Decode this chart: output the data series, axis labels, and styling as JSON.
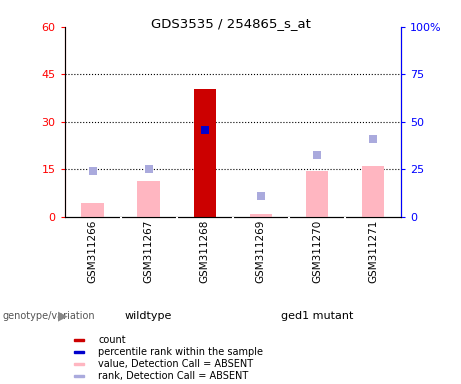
{
  "title": "GDS3535 / 254865_s_at",
  "samples": [
    "GSM311266",
    "GSM311267",
    "GSM311268",
    "GSM311269",
    "GSM311270",
    "GSM311271"
  ],
  "bar_values": [
    4.5,
    11.5,
    40.5,
    1.0,
    14.5,
    16.0
  ],
  "bar_colors": [
    "#FFB6C1",
    "#FFB6C1",
    "#CC0000",
    "#FFB6C1",
    "#FFB6C1",
    "#FFB6C1"
  ],
  "rank_squares": [
    14.5,
    15.2,
    27.5,
    6.5,
    19.5,
    24.5
  ],
  "rank_colors": [
    "#AAAADD",
    "#AAAADD",
    "#0000CC",
    "#AAAADD",
    "#AAAADD",
    "#AAAADD"
  ],
  "ylim_left": [
    0,
    60
  ],
  "ylim_right": [
    0,
    100
  ],
  "yticks_left": [
    0,
    15,
    30,
    45,
    60
  ],
  "yticks_right": [
    0,
    25,
    50,
    75,
    100
  ],
  "ytick_labels_left": [
    "0",
    "15",
    "30",
    "45",
    "60"
  ],
  "ytick_labels_right": [
    "0",
    "25",
    "50",
    "75",
    "100%"
  ],
  "hlines": [
    15,
    30,
    45
  ],
  "legend_items": [
    {
      "label": "count",
      "color": "#CC0000"
    },
    {
      "label": "percentile rank within the sample",
      "color": "#0000CC"
    },
    {
      "label": "value, Detection Call = ABSENT",
      "color": "#FFB6C1"
    },
    {
      "label": "rank, Detection Call = ABSENT",
      "color": "#AAAADD"
    }
  ],
  "genotype_label": "genotype/variation",
  "group_label1": "wildtype",
  "group_label2": "ged1 mutant",
  "group_color_light": "#90EE90",
  "group_color_bright": "#44DD44",
  "bg_color": "#C8C8C8",
  "bar_width": 0.4
}
